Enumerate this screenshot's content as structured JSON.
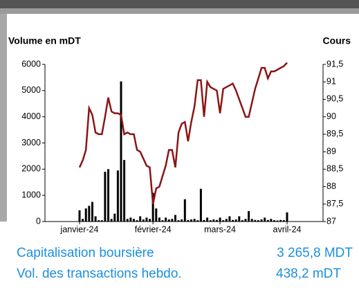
{
  "chart_data": {
    "type": "bar-line",
    "y_label": "Volume en mDT",
    "y2_label": "Cours",
    "categories": [
      "janvier-24",
      null,
      null,
      null,
      null,
      null,
      null,
      null,
      null,
      null,
      null,
      null,
      null,
      null,
      null,
      null,
      null,
      null,
      null,
      null,
      null,
      null,
      null,
      "février-24",
      null,
      null,
      null,
      null,
      null,
      null,
      null,
      null,
      null,
      null,
      null,
      null,
      null,
      null,
      null,
      null,
      null,
      null,
      null,
      null,
      "mars-24",
      null,
      null,
      null,
      null,
      null,
      null,
      null,
      null,
      null,
      null,
      null,
      null,
      null,
      null,
      null,
      null,
      null,
      null,
      null,
      null,
      "avril-24"
    ],
    "series": [
      {
        "type": "bar",
        "color": "#000000",
        "values": [
          430,
          100,
          500,
          600,
          750,
          200,
          50,
          50,
          1900,
          2000,
          100,
          300,
          1950,
          5350,
          2350,
          100,
          150,
          100,
          50,
          200,
          80,
          150,
          100,
          1100,
          500,
          150,
          50,
          150,
          80,
          100,
          250,
          50,
          80,
          850,
          60,
          80,
          100,
          50,
          1250,
          60,
          150,
          50,
          80,
          60,
          150,
          50,
          100,
          200,
          60,
          80,
          200,
          50,
          100,
          400,
          100,
          60,
          50,
          80,
          150,
          60,
          100,
          50,
          40,
          60,
          50,
          350
        ]
      },
      {
        "type": "line",
        "axis": "y2",
        "color": "#8b1414",
        "values": [
          88.55,
          88.75,
          89.05,
          90.25,
          90.05,
          89.55,
          89.5,
          89.5,
          90.0,
          90.55,
          90.15,
          90.1,
          90.1,
          90.05,
          89.5,
          89.55,
          89.5,
          89.5,
          89.05,
          89.0,
          88.8,
          88.6,
          88.55,
          87.5,
          87.95,
          88.0,
          88.3,
          88.6,
          89.05,
          89.05,
          88.55,
          89.55,
          89.8,
          89.85,
          89.3,
          89.85,
          90.3,
          91.05,
          91.05,
          90.0,
          91.0,
          90.85,
          90.8,
          90.75,
          90.1,
          90.8,
          90.85,
          90.9,
          90.95,
          90.75,
          90.5,
          90.25,
          90.0,
          90.0,
          90.4,
          90.8,
          91.1,
          91.4,
          91.4,
          91.1,
          91.3,
          91.3,
          91.35,
          91.4,
          91.45,
          91.55
        ]
      }
    ],
    "ylim": [
      0,
      6000
    ],
    "yticks": [
      0,
      1000,
      2000,
      3000,
      4000,
      5000,
      6000
    ],
    "y2lim": [
      87,
      91.5
    ],
    "y2ticks": [
      87,
      {
        "value": 87.5,
        "label": "87,5"
      },
      88,
      {
        "value": 88.5,
        "label": "88,5"
      },
      89,
      {
        "value": 89.5,
        "label": "89,5"
      },
      90,
      {
        "value": 90.5,
        "label": "90,5"
      },
      91,
      {
        "value": 91.5,
        "label": "91,5"
      }
    ],
    "grid": false
  },
  "stats": [
    {
      "label": "Capitalisation boursière",
      "value": "3 265,8 MDT"
    },
    {
      "label": "Vol. des transactions hebdo.",
      "value": "438,2 mDT"
    }
  ]
}
